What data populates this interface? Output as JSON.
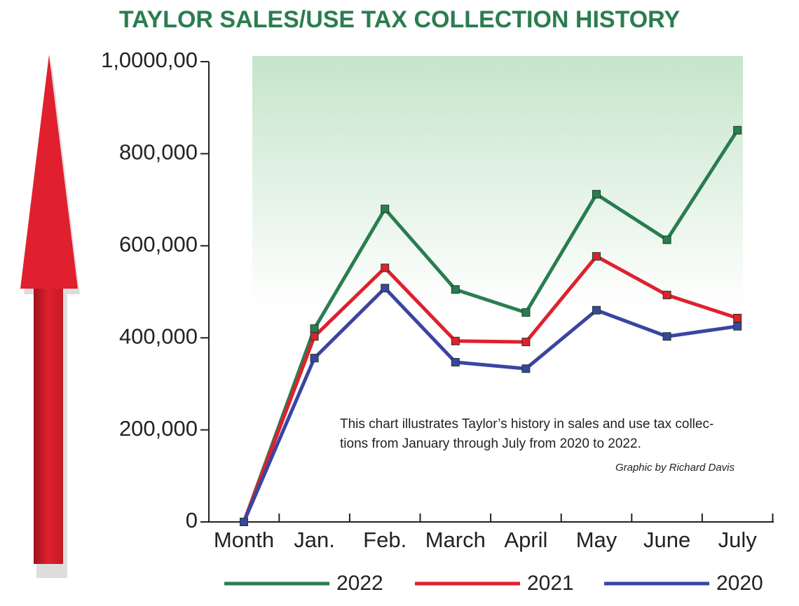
{
  "chart_data": {
    "type": "line",
    "title": "TAYLOR SALES/USE TAX COLLECTION HISTORY",
    "categories": [
      "Month",
      "Jan.",
      "Feb.",
      "March",
      "April",
      "May",
      "June",
      "July"
    ],
    "series": [
      {
        "name": "2022",
        "color": "#2a7d4f",
        "values": [
          0,
          420000,
          680000,
          505000,
          455000,
          712000,
          613000,
          851000
        ]
      },
      {
        "name": "2021",
        "color": "#e0202e",
        "values": [
          0,
          403000,
          552000,
          393000,
          391000,
          577000,
          493000,
          443000
        ]
      },
      {
        "name": "2020",
        "color": "#3a45a0",
        "values": [
          0,
          356000,
          508000,
          347000,
          333000,
          460000,
          403000,
          425000
        ]
      }
    ],
    "ylim": [
      0,
      1000000
    ],
    "yticks": [
      0,
      {
        "value": 200000,
        "label": "200,000"
      },
      {
        "value": 400000,
        "label": "400,000"
      },
      {
        "value": 600000,
        "label": "600,000"
      },
      {
        "value": 800000,
        "label": "800,000"
      },
      {
        "value": 1000000,
        "label": "1,0000,00"
      }
    ],
    "annotation": [
      "This chart illustrates Taylor’s history in sales and use tax collec-",
      "tions from January through July from 2020 to 2022."
    ],
    "credit": "Graphic by Richard Davis"
  }
}
